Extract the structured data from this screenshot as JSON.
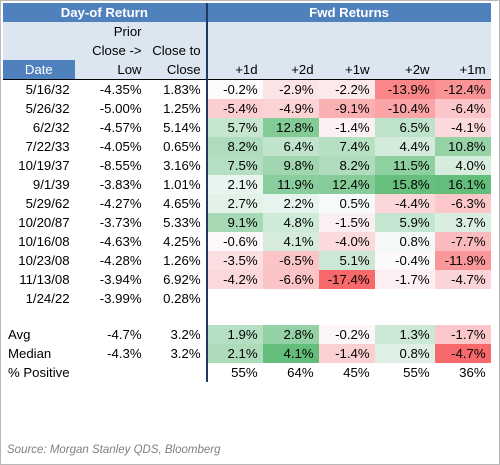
{
  "header": {
    "group_left": "Day-of Return",
    "group_right": "Fwd Returns",
    "col_prior_line1": "Prior",
    "col_prior_line2": "Close ->",
    "col_prior_line3": "Low",
    "col_close_line2": "Close to",
    "col_close_line3": "Close",
    "col_date": "Date",
    "fwd_cols": [
      "+1d",
      "+2d",
      "+1w",
      "+2w",
      "+1m"
    ]
  },
  "rows": [
    {
      "date": "5/16/32",
      "prior": "-4.35%",
      "close": "1.83%",
      "fwd": [
        "-0.2%",
        "-2.9%",
        "-2.2%",
        "-13.9%",
        "-12.4%"
      ]
    },
    {
      "date": "5/26/32",
      "prior": "-5.00%",
      "close": "1.25%",
      "fwd": [
        "-5.4%",
        "-4.9%",
        "-9.1%",
        "-10.4%",
        "-6.4%"
      ]
    },
    {
      "date": "6/2/32",
      "prior": "-4.57%",
      "close": "5.14%",
      "fwd": [
        "5.7%",
        "12.8%",
        "-1.4%",
        "6.5%",
        "-4.1%"
      ]
    },
    {
      "date": "7/22/33",
      "prior": "-4.05%",
      "close": "0.65%",
      "fwd": [
        "8.2%",
        "6.4%",
        "7.4%",
        "4.4%",
        "10.8%"
      ]
    },
    {
      "date": "10/19/37",
      "prior": "-8.55%",
      "close": "3.16%",
      "fwd": [
        "7.5%",
        "9.8%",
        "8.2%",
        "11.5%",
        "4.0%"
      ]
    },
    {
      "date": "9/1/39",
      "prior": "-3.83%",
      "close": "1.01%",
      "fwd": [
        "2.1%",
        "11.9%",
        "12.4%",
        "15.8%",
        "16.1%"
      ]
    },
    {
      "date": "5/29/62",
      "prior": "-4.27%",
      "close": "4.65%",
      "fwd": [
        "2.7%",
        "2.2%",
        "0.5%",
        "-4.4%",
        "-6.3%"
      ]
    },
    {
      "date": "10/20/87",
      "prior": "-3.73%",
      "close": "5.33%",
      "fwd": [
        "9.1%",
        "4.8%",
        "-1.5%",
        "5.9%",
        "3.7%"
      ]
    },
    {
      "date": "10/16/08",
      "prior": "-4.63%",
      "close": "4.25%",
      "fwd": [
        "-0.6%",
        "4.1%",
        "-4.0%",
        "0.8%",
        "-7.7%"
      ]
    },
    {
      "date": "10/23/08",
      "prior": "-4.28%",
      "close": "1.26%",
      "fwd": [
        "-3.5%",
        "-6.5%",
        "5.1%",
        "-0.4%",
        "-11.9%"
      ]
    },
    {
      "date": "11/13/08",
      "prior": "-3.94%",
      "close": "6.92%",
      "fwd": [
        "-4.2%",
        "-6.6%",
        "-17.4%",
        "-1.7%",
        "-4.7%"
      ]
    },
    {
      "date": "1/24/22",
      "prior": "-3.99%",
      "close": "0.28%",
      "fwd": [
        "",
        "",
        "",
        "",
        ""
      ]
    }
  ],
  "summary": [
    {
      "label": "Avg",
      "prior": "-4.7%",
      "close": "3.2%",
      "fwd": [
        "1.9%",
        "2.8%",
        "-0.2%",
        "1.3%",
        "-1.7%"
      ]
    },
    {
      "label": "Median",
      "prior": "-4.3%",
      "close": "3.2%",
      "fwd": [
        "2.1%",
        "4.1%",
        "-1.4%",
        "0.8%",
        "-4.7%"
      ]
    },
    {
      "label": "% Positive",
      "prior": "",
      "close": "",
      "fwd": [
        "55%",
        "64%",
        "45%",
        "55%",
        "36%"
      ]
    }
  ],
  "heat_colors": {
    "positive_max": "#63be7b",
    "negative_max": "#f8696b",
    "neutral": "#fcfcff"
  },
  "header_colors": {
    "blue": "#4f81bd",
    "light": "#dce6f1"
  },
  "source": "Source: Morgan Stanley QDS, Bloomberg"
}
